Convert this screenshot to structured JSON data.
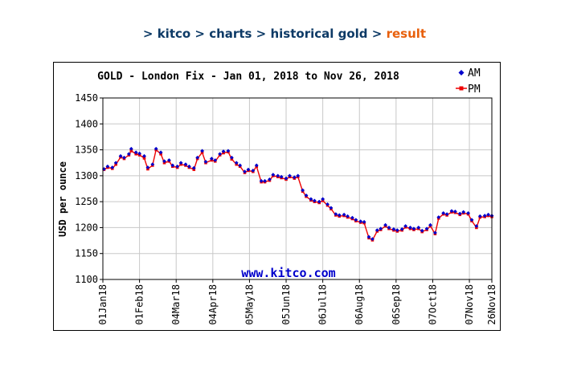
{
  "breadcrumb": {
    "items": [
      "kitco",
      "charts",
      "historical gold"
    ],
    "current": "result",
    "separator": ">"
  },
  "chart_data": {
    "type": "line",
    "title": "GOLD - London Fix - Jan 01, 2018 to Nov 26, 2018",
    "ylabel": "USD per ounce",
    "xlabel": "",
    "watermark": "www.kitco.com",
    "ylim": [
      1100,
      1450
    ],
    "yticks": [
      1100,
      1150,
      1200,
      1250,
      1300,
      1350,
      1400,
      1450
    ],
    "xlim": [
      "2018-01-01",
      "2018-11-26"
    ],
    "xticks": [
      {
        "date": "2018-01-01",
        "label": "01Jan18"
      },
      {
        "date": "2018-02-01",
        "label": "01Feb18"
      },
      {
        "date": "2018-03-04",
        "label": "04Mar18"
      },
      {
        "date": "2018-04-04",
        "label": "04Apr18"
      },
      {
        "date": "2018-05-05",
        "label": "05May18"
      },
      {
        "date": "2018-06-05",
        "label": "05Jun18"
      },
      {
        "date": "2018-07-06",
        "label": "06Jul18"
      },
      {
        "date": "2018-08-06",
        "label": "06Aug18"
      },
      {
        "date": "2018-09-06",
        "label": "06Sep18"
      },
      {
        "date": "2018-10-07",
        "label": "07Oct18"
      },
      {
        "date": "2018-11-07",
        "label": "07Nov18"
      },
      {
        "date": "2018-11-26",
        "label": "26Nov18"
      }
    ],
    "grid": true,
    "legend_position": "top-right",
    "colors": {
      "am": "#0000cc",
      "pm": "#ee0000",
      "grid": "#c8c8c8",
      "watermark": "#0000cc"
    },
    "series": [
      {
        "name": "AM",
        "marker": "diamond",
        "x": [
          "2018-01-02",
          "2018-01-05",
          "2018-01-09",
          "2018-01-12",
          "2018-01-16",
          "2018-01-19",
          "2018-01-23",
          "2018-01-25",
          "2018-01-29",
          "2018-02-01",
          "2018-02-05",
          "2018-02-08",
          "2018-02-12",
          "2018-02-15",
          "2018-02-19",
          "2018-02-22",
          "2018-02-26",
          "2018-03-01",
          "2018-03-05",
          "2018-03-08",
          "2018-03-12",
          "2018-03-15",
          "2018-03-19",
          "2018-03-22",
          "2018-03-26",
          "2018-03-29",
          "2018-04-03",
          "2018-04-06",
          "2018-04-10",
          "2018-04-13",
          "2018-04-17",
          "2018-04-20",
          "2018-04-24",
          "2018-04-27",
          "2018-05-01",
          "2018-05-04",
          "2018-05-08",
          "2018-05-11",
          "2018-05-15",
          "2018-05-18",
          "2018-05-22",
          "2018-05-25",
          "2018-05-29",
          "2018-06-01",
          "2018-06-05",
          "2018-06-08",
          "2018-06-12",
          "2018-06-15",
          "2018-06-19",
          "2018-06-22",
          "2018-06-26",
          "2018-06-29",
          "2018-07-03",
          "2018-07-06",
          "2018-07-10",
          "2018-07-13",
          "2018-07-17",
          "2018-07-20",
          "2018-07-24",
          "2018-07-27",
          "2018-07-31",
          "2018-08-03",
          "2018-08-07",
          "2018-08-10",
          "2018-08-14",
          "2018-08-17",
          "2018-08-21",
          "2018-08-24",
          "2018-08-28",
          "2018-08-31",
          "2018-09-04",
          "2018-09-07",
          "2018-09-11",
          "2018-09-14",
          "2018-09-18",
          "2018-09-21",
          "2018-09-25",
          "2018-09-28",
          "2018-10-02",
          "2018-10-05",
          "2018-10-09",
          "2018-10-12",
          "2018-10-16",
          "2018-10-19",
          "2018-10-23",
          "2018-10-26",
          "2018-10-30",
          "2018-11-02",
          "2018-11-06",
          "2018-11-09",
          "2018-11-13",
          "2018-11-16",
          "2018-11-20",
          "2018-11-23",
          "2018-11-26"
        ],
        "values": [
          1313,
          1318,
          1316,
          1325,
          1338,
          1335,
          1342,
          1352,
          1345,
          1343,
          1338,
          1316,
          1322,
          1352,
          1345,
          1328,
          1330,
          1320,
          1318,
          1325,
          1322,
          1318,
          1315,
          1335,
          1348,
          1327,
          1333,
          1330,
          1342,
          1347,
          1348,
          1335,
          1325,
          1320,
          1308,
          1312,
          1310,
          1320,
          1290,
          1290,
          1293,
          1302,
          1300,
          1298,
          1295,
          1300,
          1297,
          1300,
          1272,
          1262,
          1255,
          1252,
          1250,
          1255,
          1245,
          1238,
          1226,
          1224,
          1225,
          1222,
          1219,
          1215,
          1212,
          1211,
          1182,
          1178,
          1195,
          1198,
          1205,
          1200,
          1197,
          1195,
          1197,
          1203,
          1200,
          1198,
          1200,
          1194,
          1198,
          1205,
          1190,
          1220,
          1228,
          1226,
          1232,
          1231,
          1227,
          1230,
          1228,
          1215,
          1203,
          1222,
          1223,
          1225,
          1223
        ]
      },
      {
        "name": "PM",
        "marker": "square",
        "x": [
          "2018-01-02",
          "2018-01-05",
          "2018-01-09",
          "2018-01-12",
          "2018-01-16",
          "2018-01-19",
          "2018-01-23",
          "2018-01-25",
          "2018-01-29",
          "2018-02-01",
          "2018-02-05",
          "2018-02-08",
          "2018-02-12",
          "2018-02-15",
          "2018-02-19",
          "2018-02-22",
          "2018-02-26",
          "2018-03-01",
          "2018-03-05",
          "2018-03-08",
          "2018-03-12",
          "2018-03-15",
          "2018-03-19",
          "2018-03-22",
          "2018-03-26",
          "2018-03-29",
          "2018-04-03",
          "2018-04-06",
          "2018-04-10",
          "2018-04-13",
          "2018-04-17",
          "2018-04-20",
          "2018-04-24",
          "2018-04-27",
          "2018-05-01",
          "2018-05-04",
          "2018-05-08",
          "2018-05-11",
          "2018-05-15",
          "2018-05-18",
          "2018-05-22",
          "2018-05-25",
          "2018-05-29",
          "2018-06-01",
          "2018-06-05",
          "2018-06-08",
          "2018-06-12",
          "2018-06-15",
          "2018-06-19",
          "2018-06-22",
          "2018-06-26",
          "2018-06-29",
          "2018-07-03",
          "2018-07-06",
          "2018-07-10",
          "2018-07-13",
          "2018-07-17",
          "2018-07-20",
          "2018-07-24",
          "2018-07-27",
          "2018-07-31",
          "2018-08-03",
          "2018-08-07",
          "2018-08-10",
          "2018-08-14",
          "2018-08-17",
          "2018-08-21",
          "2018-08-24",
          "2018-08-28",
          "2018-08-31",
          "2018-09-04",
          "2018-09-07",
          "2018-09-11",
          "2018-09-14",
          "2018-09-18",
          "2018-09-21",
          "2018-09-25",
          "2018-09-28",
          "2018-10-02",
          "2018-10-05",
          "2018-10-09",
          "2018-10-12",
          "2018-10-16",
          "2018-10-19",
          "2018-10-23",
          "2018-10-26",
          "2018-10-30",
          "2018-11-02",
          "2018-11-06",
          "2018-11-09",
          "2018-11-13",
          "2018-11-16",
          "2018-11-20",
          "2018-11-23",
          "2018-11-26"
        ],
        "values": [
          1312,
          1316,
          1314,
          1322,
          1336,
          1333,
          1340,
          1348,
          1342,
          1340,
          1334,
          1313,
          1320,
          1350,
          1342,
          1325,
          1328,
          1318,
          1316,
          1322,
          1320,
          1316,
          1312,
          1333,
          1345,
          1325,
          1330,
          1328,
          1340,
          1344,
          1346,
          1332,
          1322,
          1318,
          1306,
          1310,
          1308,
          1318,
          1288,
          1288,
          1291,
          1300,
          1298,
          1296,
          1293,
          1298,
          1295,
          1298,
          1270,
          1260,
          1253,
          1250,
          1248,
          1252,
          1243,
          1236,
          1224,
          1222,
          1223,
          1220,
          1217,
          1213,
          1210,
          1209,
          1180,
          1176,
          1193,
          1196,
          1203,
          1198,
          1195,
          1193,
          1195,
          1201,
          1198,
          1196,
          1198,
          1192,
          1196,
          1203,
          1188,
          1218,
          1226,
          1224,
          1230,
          1229,
          1225,
          1228,
          1226,
          1213,
          1200,
          1220,
          1221,
          1223,
          1221
        ]
      }
    ]
  }
}
